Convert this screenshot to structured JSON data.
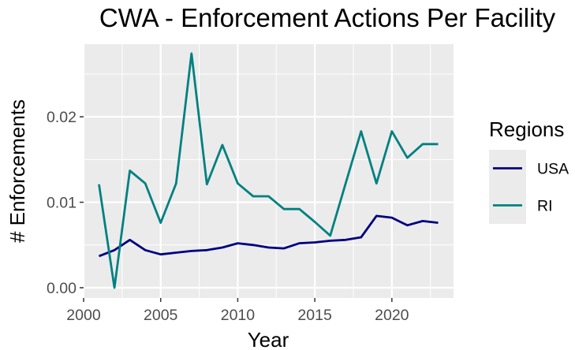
{
  "chart_data": {
    "type": "line",
    "title": "CWA - Enforcement Actions Per Facility",
    "xlabel": "Year",
    "ylabel": "# Enforcements",
    "xlim": [
      2000,
      2024
    ],
    "ylim": [
      -0.0012,
      0.0285
    ],
    "x_ticks": [
      2000,
      2005,
      2010,
      2015,
      2020
    ],
    "x_tick_labels": [
      "2000",
      "2005",
      "2010",
      "2015",
      "2020"
    ],
    "y_ticks": [
      0.0,
      0.01,
      0.02
    ],
    "y_tick_labels": [
      "0.00",
      "0.01",
      "0.02"
    ],
    "grid": true,
    "legend": {
      "title": "Regions",
      "placement": "right"
    },
    "x": [
      2001,
      2002,
      2003,
      2004,
      2005,
      2006,
      2007,
      2008,
      2009,
      2010,
      2011,
      2012,
      2013,
      2014,
      2015,
      2016,
      2017,
      2018,
      2019,
      2020,
      2021,
      2022,
      2023
    ],
    "series": [
      {
        "name": "USA",
        "color": "#000080",
        "values": [
          0.0037,
          0.0044,
          0.0056,
          0.0044,
          0.0039,
          0.0041,
          0.0043,
          0.0044,
          0.0047,
          0.0052,
          0.005,
          0.0047,
          0.0046,
          0.0052,
          0.0053,
          0.0055,
          0.0056,
          0.0059,
          0.0084,
          0.0082,
          0.0073,
          0.0078,
          0.0076
        ]
      },
      {
        "name": "RI",
        "color": "#008080",
        "values": [
          0.0121,
          0.0,
          0.0137,
          0.0122,
          0.0076,
          0.0122,
          0.0274,
          0.0121,
          0.0167,
          0.0122,
          0.0107,
          0.0107,
          0.0092,
          0.0092,
          0.0077,
          0.0061,
          0.0122,
          0.0183,
          0.0122,
          0.0183,
          0.0152,
          0.0168,
          0.0168
        ]
      }
    ]
  }
}
